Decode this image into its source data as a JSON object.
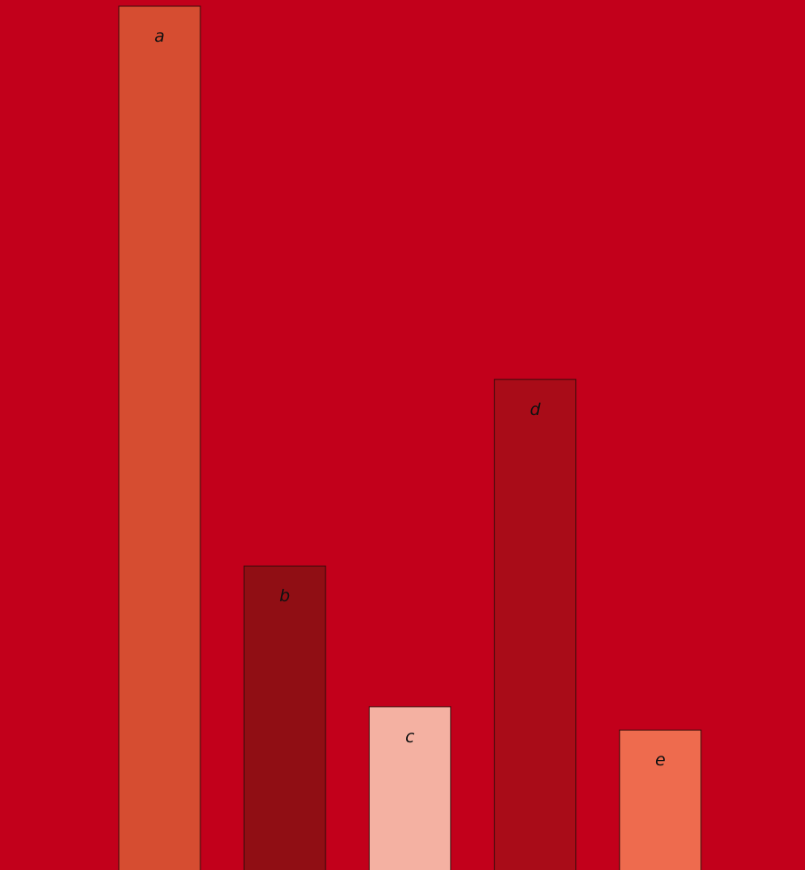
{
  "background": "#c2001b",
  "chart_data": {
    "type": "bar",
    "categories": [
      "a",
      "b",
      "c",
      "d",
      "e"
    ],
    "values": [
      1.0,
      0.352,
      0.189,
      0.568,
      0.162
    ],
    "colors": [
      "#d64d31",
      "#900e14",
      "#f4b1a2",
      "#a90c18",
      "#ee6b4e"
    ],
    "data_labels": [
      "a",
      "b",
      "c",
      "d",
      "e"
    ],
    "title": "",
    "xlabel": "",
    "ylabel": "",
    "ylim": [
      0,
      1.0
    ],
    "grid": false,
    "axes_visible": false
  }
}
